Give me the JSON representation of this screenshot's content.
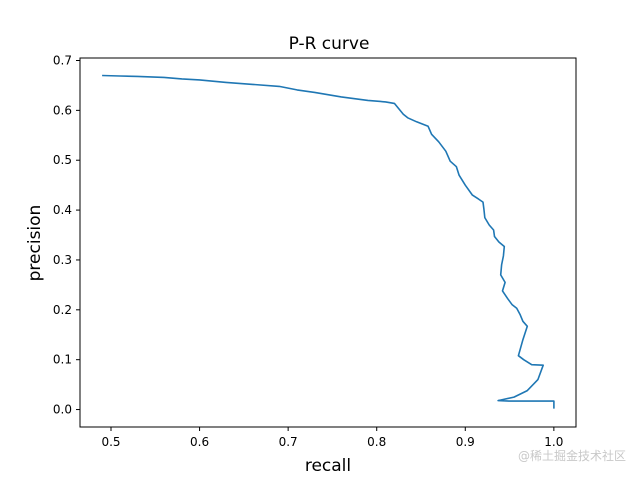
{
  "chart_data": {
    "type": "line",
    "title": "P-R curve",
    "xlabel": "recall",
    "ylabel": "precision",
    "xlim": [
      0.465,
      1.025
    ],
    "ylim": [
      -0.035,
      0.705
    ],
    "xticks": [
      "0.5",
      "0.6",
      "0.7",
      "0.8",
      "0.9",
      "1.0"
    ],
    "yticks": [
      "0.0",
      "0.1",
      "0.2",
      "0.3",
      "0.4",
      "0.5",
      "0.6",
      "0.7"
    ],
    "grid": false,
    "series": [
      {
        "color": "#1f77b4",
        "points": [
          [
            0.49,
            0.67
          ],
          [
            0.51,
            0.669
          ],
          [
            0.53,
            0.668
          ],
          [
            0.56,
            0.666
          ],
          [
            0.58,
            0.663
          ],
          [
            0.6,
            0.661
          ],
          [
            0.63,
            0.656
          ],
          [
            0.66,
            0.652
          ],
          [
            0.69,
            0.648
          ],
          [
            0.71,
            0.641
          ],
          [
            0.73,
            0.636
          ],
          [
            0.76,
            0.627
          ],
          [
            0.79,
            0.62
          ],
          [
            0.81,
            0.617
          ],
          [
            0.82,
            0.614
          ],
          [
            0.825,
            0.603
          ],
          [
            0.83,
            0.592
          ],
          [
            0.835,
            0.585
          ],
          [
            0.845,
            0.577
          ],
          [
            0.858,
            0.568
          ],
          [
            0.862,
            0.552
          ],
          [
            0.87,
            0.537
          ],
          [
            0.878,
            0.518
          ],
          [
            0.883,
            0.498
          ],
          [
            0.89,
            0.487
          ],
          [
            0.893,
            0.47
          ],
          [
            0.9,
            0.45
          ],
          [
            0.908,
            0.43
          ],
          [
            0.915,
            0.422
          ],
          [
            0.92,
            0.416
          ],
          [
            0.921,
            0.402
          ],
          [
            0.922,
            0.385
          ],
          [
            0.927,
            0.37
          ],
          [
            0.932,
            0.36
          ],
          [
            0.933,
            0.347
          ],
          [
            0.938,
            0.336
          ],
          [
            0.944,
            0.327
          ],
          [
            0.943,
            0.308
          ],
          [
            0.941,
            0.29
          ],
          [
            0.94,
            0.27
          ],
          [
            0.945,
            0.255
          ],
          [
            0.942,
            0.238
          ],
          [
            0.948,
            0.222
          ],
          [
            0.953,
            0.21
          ],
          [
            0.958,
            0.203
          ],
          [
            0.962,
            0.19
          ],
          [
            0.965,
            0.177
          ],
          [
            0.97,
            0.167
          ],
          [
            0.965,
            0.14
          ],
          [
            0.96,
            0.108
          ],
          [
            0.966,
            0.1
          ],
          [
            0.975,
            0.09
          ],
          [
            0.988,
            0.089
          ],
          [
            0.982,
            0.06
          ],
          [
            0.97,
            0.038
          ],
          [
            0.955,
            0.025
          ],
          [
            0.937,
            0.018
          ],
          [
            0.95,
            0.017
          ],
          [
            0.97,
            0.017
          ],
          [
            1.0,
            0.017
          ],
          [
            1.0,
            0.002
          ]
        ]
      }
    ]
  },
  "watermark": "@稀土掘金技术社区"
}
